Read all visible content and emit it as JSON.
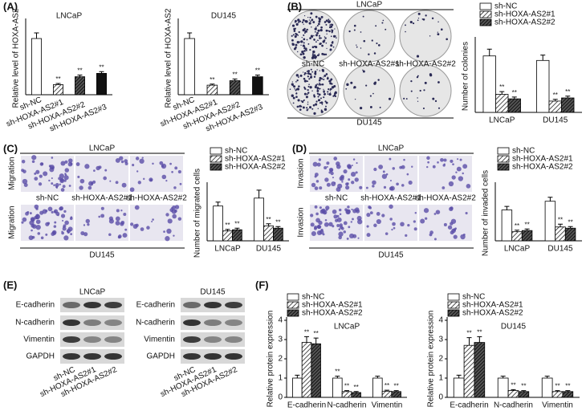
{
  "panel_labels": [
    "(A)",
    "(B)",
    "(C)",
    "(D)",
    "(E)",
    "(F)"
  ],
  "chart_data": [
    {
      "type": "bar",
      "title": "LNCaP",
      "ylabel": "Relative level of  HOXA-AS2",
      "categories": [
        "sh-NC",
        "sh-HOXA-AS2#1",
        "sh-HOXA-AS2#2",
        "sh-HOXA-AS2#3"
      ],
      "values": [
        1.0,
        0.18,
        0.32,
        0.38
      ],
      "errors": [
        0.1,
        0.02,
        0.03,
        0.03
      ],
      "annotations": [
        null,
        "**",
        "**",
        "**"
      ],
      "fills": [
        "white",
        "hatch",
        "dense-hatch",
        "black"
      ],
      "ylim": [
        0,
        1.3
      ]
    },
    {
      "type": "bar",
      "title": "DU145",
      "ylabel": "Relative level of  HOXA-AS2",
      "categories": [
        "sh-NC",
        "sh-HOXA-AS2#1",
        "sh-HOXA-AS2#2",
        "sh-HOXA-AS2#3"
      ],
      "values": [
        1.0,
        0.17,
        0.25,
        0.32
      ],
      "errors": [
        0.1,
        0.02,
        0.03,
        0.03
      ],
      "annotations": [
        null,
        "**",
        "**",
        "**"
      ],
      "fills": [
        "white",
        "hatch",
        "dense-hatch",
        "black"
      ],
      "ylim": [
        0,
        1.3
      ]
    },
    {
      "type": "bar",
      "ylabel": "Number of colonies",
      "categories": [
        "LNCaP",
        "DU145"
      ],
      "series": [
        {
          "name": "sh-NC",
          "fill": "white",
          "values": [
            125,
            115
          ],
          "errors": [
            15,
            12
          ]
        },
        {
          "name": "sh-HOXA-AS2#1",
          "fill": "hatch",
          "values": [
            40,
            25
          ],
          "errors": [
            6,
            4
          ],
          "annotations": [
            "**",
            "**"
          ]
        },
        {
          "name": "sh-HOXA-AS2#2",
          "fill": "dense-hatch",
          "values": [
            30,
            32
          ],
          "errors": [
            4,
            4
          ],
          "annotations": [
            "**",
            "**"
          ]
        }
      ],
      "ylim": [
        0,
        160
      ],
      "legend": "top"
    },
    {
      "type": "bar",
      "ylabel": "Number of migrated cells",
      "categories": [
        "LNCaP",
        "DU145"
      ],
      "series": [
        {
          "name": "sh-NC",
          "fill": "white",
          "values": [
            88,
            108
          ],
          "errors": [
            10,
            20
          ]
        },
        {
          "name": "sh-HOXA-AS2#1",
          "fill": "hatch",
          "values": [
            25,
            38
          ],
          "errors": [
            4,
            5
          ],
          "annotations": [
            "**",
            "**"
          ]
        },
        {
          "name": "sh-HOXA-AS2#2",
          "fill": "dense-hatch",
          "values": [
            28,
            32
          ],
          "errors": [
            4,
            4
          ],
          "annotations": [
            "**",
            "**"
          ]
        }
      ],
      "ylim": [
        0,
        140
      ],
      "legend": "top"
    },
    {
      "type": "bar",
      "ylabel": "Number of invaded cells",
      "categories": [
        "LNCaP",
        "DU145"
      ],
      "series": [
        {
          "name": "sh-NC",
          "fill": "white",
          "values": [
            78,
            100
          ],
          "errors": [
            9,
            10
          ]
        },
        {
          "name": "sh-HOXA-AS2#1",
          "fill": "hatch",
          "values": [
            23,
            35
          ],
          "errors": [
            4,
            7
          ],
          "annotations": [
            "**",
            "**"
          ]
        },
        {
          "name": "sh-HOXA-AS2#2",
          "fill": "dense-hatch",
          "values": [
            26,
            32
          ],
          "errors": [
            4,
            4
          ],
          "annotations": [
            "**",
            "**"
          ]
        }
      ],
      "ylim": [
        0,
        140
      ],
      "legend": "top"
    },
    {
      "type": "bar",
      "title": "LNCaP",
      "ylabel": "Relative protein expression",
      "categories": [
        "E-cadherin",
        "N-cadherin",
        "Vimentin"
      ],
      "series": [
        {
          "name": "sh-NC",
          "fill": "white",
          "values": [
            1.0,
            1.0,
            1.0
          ],
          "errors": [
            0.15,
            0.1,
            0.1
          ],
          "annotations": [
            null,
            "**",
            null
          ]
        },
        {
          "name": "sh-HOXA-AS2#1",
          "fill": "hatch",
          "values": [
            2.85,
            0.3,
            0.32
          ],
          "errors": [
            0.3,
            0.05,
            0.05
          ],
          "annotations": [
            "**",
            "**",
            "**"
          ]
        },
        {
          "name": "sh-HOXA-AS2#2",
          "fill": "dense-hatch",
          "values": [
            2.78,
            0.25,
            0.3
          ],
          "errors": [
            0.3,
            0.05,
            0.05
          ],
          "annotations": [
            "**",
            "**",
            "**"
          ]
        }
      ],
      "ylim": [
        0,
        4
      ],
      "yticks": [
        0,
        1,
        2,
        3,
        4
      ],
      "legend": "top-left"
    },
    {
      "type": "bar",
      "title": "DU145",
      "ylabel": "Relative protein expression",
      "categories": [
        "E-cadherin",
        "N-cadherin",
        "Vimentin"
      ],
      "series": [
        {
          "name": "sh-NC",
          "fill": "white",
          "values": [
            1.0,
            1.0,
            1.0
          ],
          "errors": [
            0.15,
            0.1,
            0.1
          ]
        },
        {
          "name": "sh-HOXA-AS2#1",
          "fill": "hatch",
          "values": [
            2.7,
            0.35,
            0.3
          ],
          "errors": [
            0.4,
            0.05,
            0.05
          ],
          "annotations": [
            "**",
            "**",
            "**"
          ]
        },
        {
          "name": "sh-HOXA-AS2#2",
          "fill": "dense-hatch",
          "values": [
            2.85,
            0.3,
            0.3
          ],
          "errors": [
            0.3,
            0.05,
            0.05
          ],
          "annotations": [
            "**",
            "**",
            "**"
          ]
        }
      ],
      "ylim": [
        0,
        4
      ],
      "yticks": [
        0,
        1,
        2,
        3,
        4
      ],
      "legend": "top-left"
    }
  ],
  "image_panels": {
    "B": {
      "top_label": "LNCaP",
      "columns": [
        "sh-NC",
        "sh-HOXA-AS2#1",
        "sh-HOXA-AS2#2"
      ],
      "bottom_label": "DU145"
    },
    "C": {
      "top_label": "LNCaP",
      "row_labels": [
        "Migration",
        "Migration"
      ],
      "columns": [
        "sh-NC",
        "sh-HOXA-AS2#1",
        "sh-HOXA-AS2#2"
      ],
      "bottom_label": "DU145"
    },
    "D": {
      "top_label": "LNCaP",
      "row_labels": [
        "Invasion",
        "Invasion"
      ],
      "columns": [
        "sh-NC",
        "sh-HOXA-AS2#1",
        "sh-HOXA-AS2#2"
      ],
      "bottom_label": "DU145"
    },
    "E": {
      "blots": [
        {
          "title": "LNCaP",
          "rows": [
            "E-cadherin",
            "N-cadherin",
            "Vimentin",
            "GAPDH"
          ],
          "lanes": [
            "sh-NC",
            "sh-HOXA-AS2#1",
            "sh-HOXA-AS2#2"
          ]
        },
        {
          "title": "DU145",
          "rows": [
            "E-cadherin",
            "N-cadherin",
            "Vimentin",
            "GAPDH"
          ],
          "lanes": [
            "sh-NC",
            "sh-HOXA-AS2#1",
            "sh-HOXA-AS2#2"
          ]
        }
      ]
    }
  }
}
